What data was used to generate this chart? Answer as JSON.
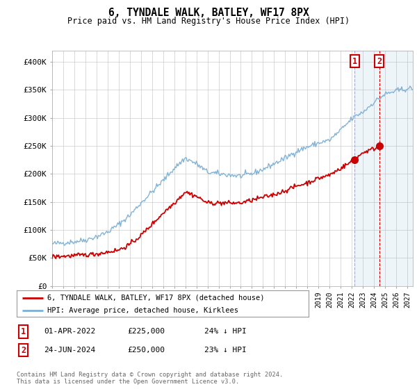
{
  "title": "6, TYNDALE WALK, BATLEY, WF17 8PX",
  "subtitle": "Price paid vs. HM Land Registry's House Price Index (HPI)",
  "ylim": [
    0,
    420000
  ],
  "yticks": [
    0,
    50000,
    100000,
    150000,
    200000,
    250000,
    300000,
    350000,
    400000
  ],
  "ytick_labels": [
    "£0",
    "£50K",
    "£100K",
    "£150K",
    "£200K",
    "£250K",
    "£300K",
    "£350K",
    "£400K"
  ],
  "background_color": "#ffffff",
  "grid_color": "#cccccc",
  "hpi_color": "#7bafd4",
  "price_color": "#cc0000",
  "annotation_box_color": "#cc0000",
  "sale1_x": 2022.25,
  "sale1_y": 225000,
  "sale2_x": 2024.48,
  "sale2_y": 250000,
  "legend_label_price": "6, TYNDALE WALK, BATLEY, WF17 8PX (detached house)",
  "legend_label_hpi": "HPI: Average price, detached house, Kirklees",
  "footer_text": "Contains HM Land Registry data © Crown copyright and database right 2024.\nThis data is licensed under the Open Government Licence v3.0.",
  "sale1_date": "01-APR-2022",
  "sale1_price": "£225,000",
  "sale1_note": "24% ↓ HPI",
  "sale2_date": "24-JUN-2024",
  "sale2_price": "£250,000",
  "sale2_note": "23% ↓ HPI",
  "xmin": 1995.0,
  "xmax": 2027.5
}
